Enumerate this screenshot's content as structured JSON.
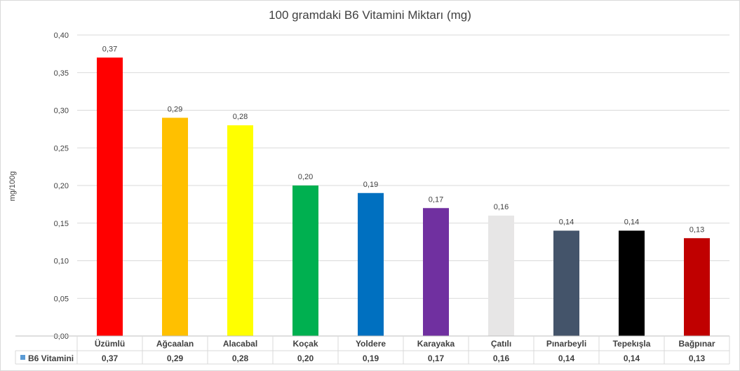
{
  "chart_data": {
    "type": "bar",
    "title": "100 gramdaki B6 Vitamini Miktarı (mg)",
    "ylabel": "mg/100g",
    "xlabel": "",
    "ylim": [
      0,
      0.4
    ],
    "yticks": [
      "0,00",
      "0,05",
      "0,10",
      "0,15",
      "0,20",
      "0,25",
      "0,30",
      "0,35",
      "0,40"
    ],
    "grid": true,
    "legend": "data table below chart",
    "categories": [
      "Üzümlü",
      "Ağcaalan",
      "Alacabal",
      "Koçak",
      "Yoldere",
      "Karayaka",
      "Çatılı",
      "Pınarbeyli",
      "Tepekışla",
      "Bağpınar"
    ],
    "series": [
      {
        "name": "B6 Vitamini",
        "values": [
          0.37,
          0.29,
          0.28,
          0.2,
          0.19,
          0.17,
          0.16,
          0.14,
          0.14,
          0.13
        ],
        "labels": [
          "0,37",
          "0,29",
          "0,28",
          "0,20",
          "0,19",
          "0,17",
          "0,16",
          "0,14",
          "0,14",
          "0,13"
        ],
        "colors": [
          "#ff0000",
          "#ffc000",
          "#ffff00",
          "#00b050",
          "#0070c0",
          "#7030a0",
          "#e7e6e6",
          "#44546a",
          "#000000",
          "#c00000"
        ],
        "legend_color": "#5b9bd5"
      }
    ]
  }
}
